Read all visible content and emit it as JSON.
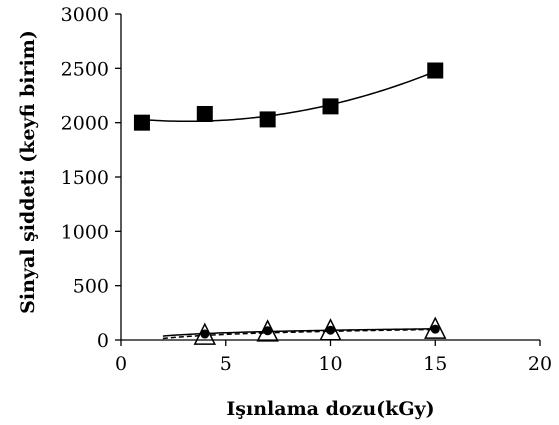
{
  "chart_data": {
    "type": "scatter",
    "title": "",
    "xlabel": "Işınlama dozu(kGy)",
    "ylabel": "Sinyal şiddeti (keyfi birim)",
    "xlim": [
      0,
      20
    ],
    "ylim": [
      0,
      3000
    ],
    "x_ticks": [
      "0",
      "5",
      "10",
      "15",
      "20"
    ],
    "y_ticks": [
      "0",
      "500",
      "1000",
      "1500",
      "2000",
      "2500",
      "3000"
    ],
    "grid": false,
    "legend": "none",
    "series": [
      {
        "marker": "square",
        "color": "#000000",
        "x": [
          1,
          4,
          7,
          10,
          15
        ],
        "y": [
          2000,
          2080,
          2030,
          2150,
          2480
        ],
        "trendline": "polynomial"
      },
      {
        "marker": "circle",
        "color": "#000000",
        "x": [
          4,
          7,
          10,
          15
        ],
        "y": [
          55,
          85,
          90,
          100
        ],
        "trendline": "logarithmic"
      },
      {
        "marker": "triangle-open",
        "color": "#000000",
        "x": [
          4,
          7,
          10,
          15
        ],
        "y": [
          40,
          70,
          80,
          95
        ],
        "trendline": "logarithmic"
      }
    ]
  }
}
